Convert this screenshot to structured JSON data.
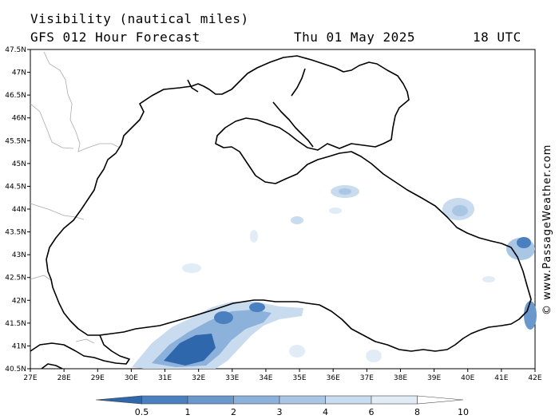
{
  "header": {
    "variable": "Visibility (nautical miles)",
    "model": "GFS 012 Hour Forecast",
    "date": "Thu 01 May 2025",
    "time": "18 UTC"
  },
  "copyright": "© www.PassageWeather.com",
  "axes": {
    "lon_labels": [
      "27E",
      "28E",
      "29E",
      "30E",
      "31E",
      "32E",
      "33E",
      "34E",
      "35E",
      "36E",
      "37E",
      "38E",
      "39E",
      "40E",
      "41E",
      "42E"
    ],
    "lat_labels": [
      "47.5N",
      "47N",
      "46.5N",
      "46N",
      "45.5N",
      "45N",
      "44.5N",
      "44N",
      "43.5N",
      "43N",
      "42.5N",
      "42N",
      "41.5N",
      "41N",
      "40.5N"
    ]
  },
  "legend": {
    "labels": [
      "0.5",
      "1",
      "2",
      "3",
      "4",
      "6",
      "8",
      "10"
    ],
    "colors": [
      "#2f67ad",
      "#4a80c0",
      "#6a98cd",
      "#8cb1da",
      "#aac6e5",
      "#c8dbef",
      "#e2ecf7",
      "#ffffff"
    ]
  }
}
